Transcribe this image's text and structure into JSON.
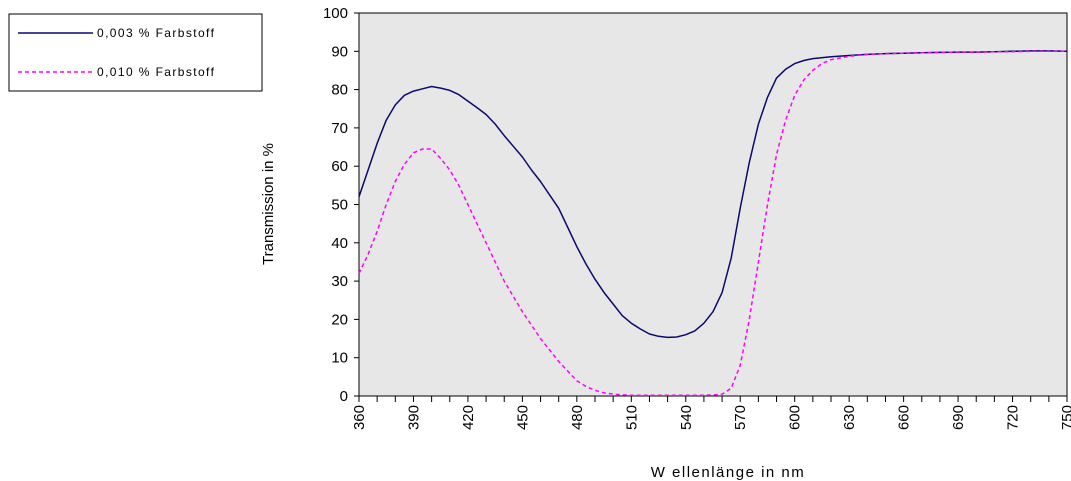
{
  "chart_data": {
    "type": "line",
    "xlabel": "W ellenlänge in nm",
    "ylabel": "Transmission in %",
    "xlim": [
      360,
      750
    ],
    "ylim": [
      0,
      100
    ],
    "x_ticks": [
      "360",
      "390",
      "420",
      "450",
      "480",
      "510",
      "540",
      "570",
      "600",
      "630",
      "660",
      "690",
      "720",
      "750"
    ],
    "y_ticks": [
      "0",
      "10",
      "20",
      "30",
      "40",
      "50",
      "60",
      "70",
      "80",
      "90",
      "100"
    ],
    "grid": false,
    "plot_background": "#e7e7e7",
    "legend_position": "top-left, outside plot",
    "series": [
      {
        "name": "0,003 % Farbstoff",
        "color": "#0a0a6e",
        "dash": "solid",
        "x": [
          360,
          365,
          370,
          375,
          380,
          385,
          390,
          395,
          400,
          405,
          410,
          415,
          420,
          425,
          430,
          435,
          440,
          445,
          450,
          455,
          460,
          465,
          470,
          475,
          480,
          485,
          490,
          495,
          500,
          505,
          510,
          515,
          520,
          525,
          530,
          535,
          540,
          545,
          550,
          555,
          560,
          565,
          570,
          575,
          580,
          585,
          590,
          595,
          600,
          605,
          610,
          620,
          630,
          640,
          650,
          660,
          670,
          680,
          690,
          700,
          710,
          720,
          730,
          740,
          750
        ],
        "y": [
          52,
          59,
          66,
          72,
          76,
          78.5,
          79.6,
          80.2,
          80.8,
          80.4,
          79.8,
          78.7,
          77,
          75.3,
          73.5,
          71,
          68,
          65.2,
          62.4,
          59,
          56,
          52.5,
          49,
          44,
          39,
          34.5,
          30.5,
          27,
          24,
          21,
          19,
          17.5,
          16.2,
          15.6,
          15.3,
          15.4,
          16,
          17,
          19,
          22,
          27,
          36,
          49,
          61,
          71,
          78,
          83,
          85.3,
          86.8,
          87.6,
          88.1,
          88.6,
          88.9,
          89.2,
          89.4,
          89.5,
          89.6,
          89.7,
          89.8,
          89.8,
          89.9,
          90,
          90.1,
          90.1,
          90
        ]
      },
      {
        "name": "0,010 % Farbstoff",
        "color": "#ff00ff",
        "dash": "dashed",
        "x": [
          360,
          365,
          370,
          375,
          380,
          385,
          390,
          395,
          400,
          405,
          410,
          415,
          420,
          425,
          430,
          435,
          440,
          445,
          450,
          455,
          460,
          465,
          470,
          475,
          480,
          485,
          490,
          495,
          500,
          505,
          510,
          515,
          520,
          525,
          530,
          535,
          540,
          545,
          550,
          555,
          560,
          565,
          570,
          575,
          580,
          585,
          590,
          595,
          600,
          605,
          610,
          615,
          620,
          630,
          640,
          650,
          660,
          670,
          680,
          690,
          700,
          710,
          720,
          730,
          740,
          750
        ],
        "y": [
          32,
          37,
          43,
          50,
          56,
          60.5,
          63.5,
          64.5,
          64.5,
          62,
          59,
          55,
          50,
          45,
          40,
          35,
          30,
          26,
          22,
          18.5,
          15,
          12,
          9,
          6.5,
          4,
          2.5,
          1.5,
          0.8,
          0.5,
          0.3,
          0.2,
          0.2,
          0.2,
          0.2,
          0.2,
          0.2,
          0.2,
          0.2,
          0.2,
          0.3,
          0.5,
          2,
          8,
          20,
          35,
          50,
          63,
          72,
          78.5,
          82.5,
          85,
          86.8,
          87.8,
          88.7,
          89.2,
          89.4,
          89.5,
          89.6,
          89.7,
          89.8,
          89.8,
          89.9,
          89.9,
          90,
          90,
          90
        ]
      }
    ]
  }
}
